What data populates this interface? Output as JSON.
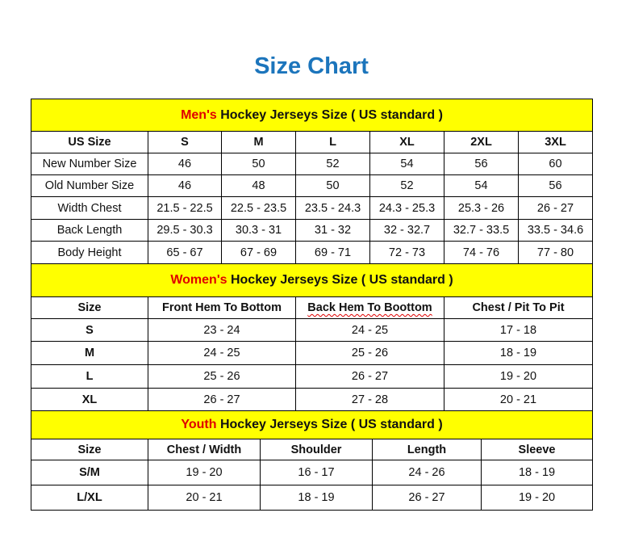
{
  "title": "Size Chart",
  "sections": [
    {
      "highlight": "Men's",
      "heading": " Hockey Jerseys Size ( US standard )",
      "columns": [
        "US Size",
        "S",
        "M",
        "L",
        "XL",
        "2XL",
        "3XL"
      ],
      "rows": [
        [
          "New Number Size",
          "46",
          "50",
          "52",
          "54",
          "56",
          "60"
        ],
        [
          "Old Number Size",
          "46",
          "48",
          "50",
          "52",
          "54",
          "56"
        ],
        [
          "Width Chest",
          "21.5 - 22.5",
          "22.5 - 23.5",
          "23.5 - 24.3",
          "24.3 - 25.3",
          "25.3 - 26",
          "26 - 27"
        ],
        [
          "Back Length",
          "29.5 - 30.3",
          "30.3 - 31",
          "31 - 32",
          "32 - 32.7",
          "32.7 - 33.5",
          "33.5 - 34.6"
        ],
        [
          "Body Height",
          "65 - 67",
          "67 - 69",
          "69 - 71",
          "72 - 73",
          "74 - 76",
          "77 - 80"
        ]
      ]
    },
    {
      "highlight": "Women's",
      "heading": " Hockey Jerseys Size ( US standard )",
      "columns": [
        "Size",
        "Front Hem To Bottom",
        "Back Hem To Boottom",
        "Chest / Pit To Pit"
      ],
      "rows": [
        [
          "S",
          "23 - 24",
          "24 - 25",
          "17 - 18"
        ],
        [
          "M",
          "24 - 25",
          "25 - 26",
          "18 - 19"
        ],
        [
          "L",
          "25 - 26",
          "26 - 27",
          "19 - 20"
        ],
        [
          "XL",
          "26 - 27",
          "27 - 28",
          "20 - 21"
        ]
      ]
    },
    {
      "highlight": "Youth",
      "heading": " Hockey Jerseys Size ( US standard )",
      "columns": [
        "Size",
        "Chest / Width",
        "Shoulder",
        "Length",
        "Sleeve"
      ],
      "rows": [
        [
          "S/M",
          "19 - 20",
          "16 - 17",
          "24 - 26",
          "18 - 19"
        ],
        [
          "L/XL",
          "20 - 21",
          "18 - 19",
          "26 - 27",
          "19 - 20"
        ]
      ]
    }
  ],
  "colors": {
    "title": "#1c75bc",
    "banner": "#ffff00",
    "highlight": "#e00000"
  }
}
